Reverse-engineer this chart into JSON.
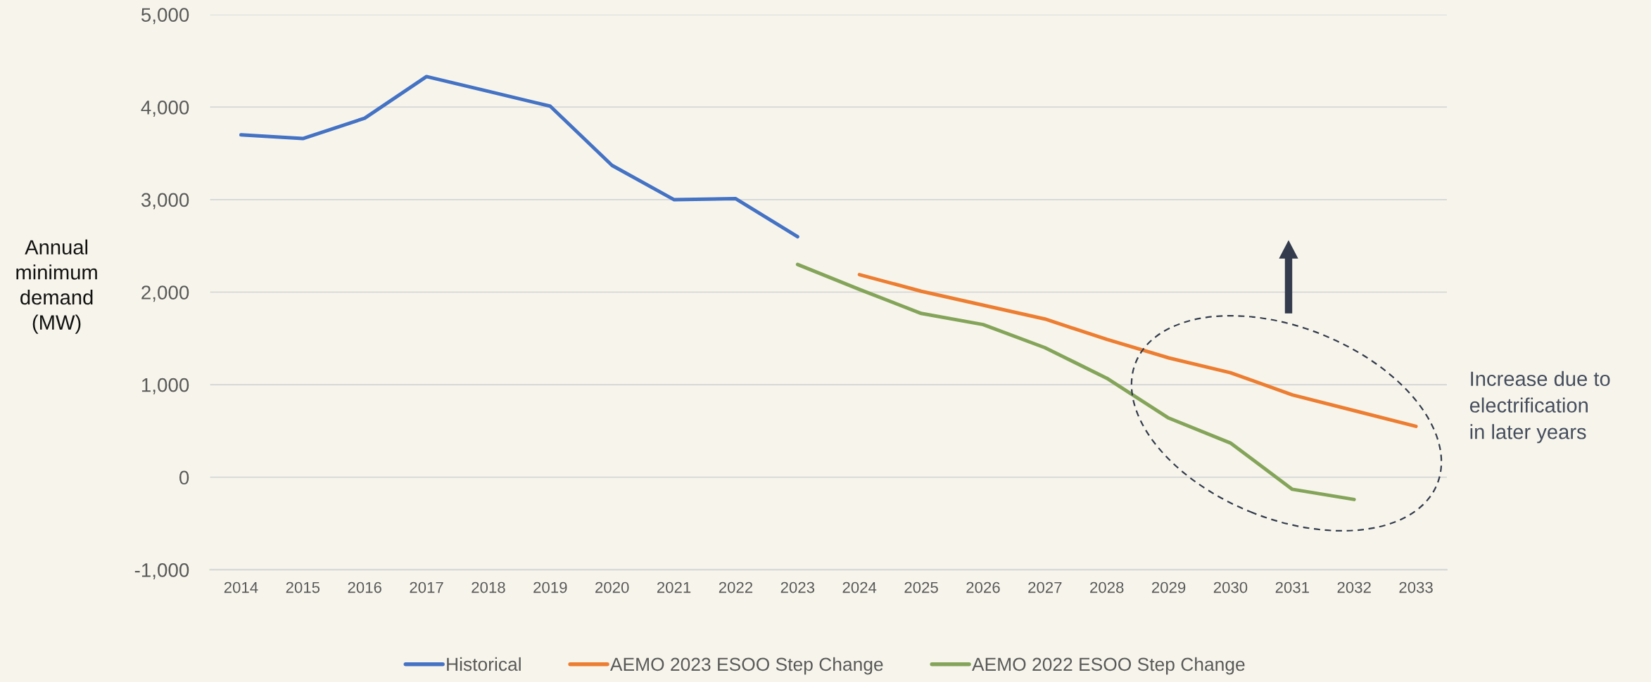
{
  "chart_data": {
    "type": "line",
    "ylabel": "Annual\nminimum\ndemand\n(MW)",
    "categories": [
      "2014",
      "2015",
      "2016",
      "2017",
      "2018",
      "2019",
      "2020",
      "2021",
      "2022",
      "2023",
      "2024",
      "2025",
      "2026",
      "2027",
      "2028",
      "2029",
      "2030",
      "2031",
      "2032",
      "2033"
    ],
    "series": [
      {
        "name": "Historical",
        "color": "#4472c4",
        "values": [
          3700,
          3660,
          3880,
          4330,
          4170,
          4010,
          3370,
          3000,
          3010,
          2600,
          null,
          null,
          null,
          null,
          null,
          null,
          null,
          null,
          null,
          null
        ]
      },
      {
        "name": "AEMO 2023 ESOO Step Change",
        "color": "#ed7d31",
        "values": [
          null,
          null,
          null,
          null,
          null,
          null,
          null,
          null,
          null,
          null,
          2190,
          2010,
          1860,
          1710,
          1490,
          1290,
          1130,
          890,
          720,
          550
        ]
      },
      {
        "name": "AEMO 2022 ESOO Step Change",
        "color": "#84a45a",
        "values": [
          null,
          null,
          null,
          null,
          null,
          null,
          null,
          null,
          null,
          2300,
          2030,
          1770,
          1650,
          1400,
          1070,
          640,
          370,
          -130,
          -240,
          null
        ]
      }
    ],
    "ylim": [
      -1000,
      5000
    ],
    "yticks": [
      {
        "value": -1000,
        "label": "-1,000"
      },
      0,
      {
        "value": 1000,
        "label": "1,000"
      },
      {
        "value": 2000,
        "label": "2,000"
      },
      {
        "value": 3000,
        "label": "3,000"
      },
      {
        "value": 4000,
        "label": "4,000"
      },
      {
        "value": 5000,
        "label": "5,000"
      }
    ],
    "grid": "y",
    "legend": "bottom",
    "annotations": [
      "Increase due to\nelectrification\nin later years"
    ]
  }
}
